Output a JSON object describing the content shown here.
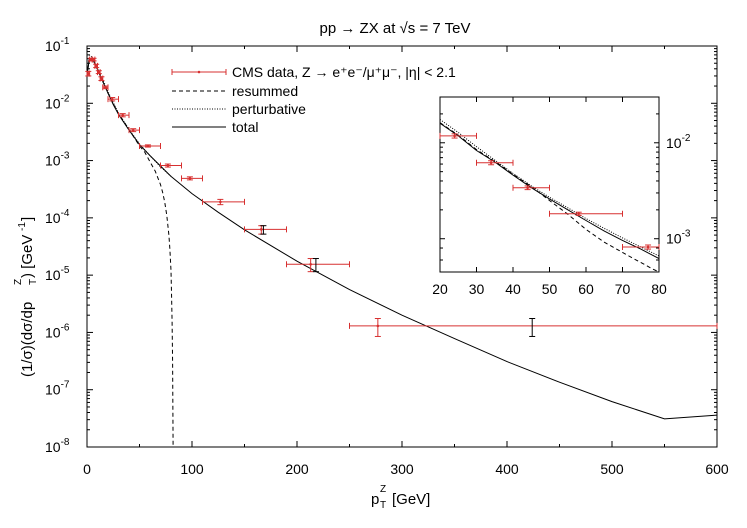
{
  "chart_data": [
    {
      "type": "scatter",
      "title": "pp → ZX at √s = 7 TeV",
      "xlabel": "p_T^Z [GeV]",
      "ylabel": "(1/σ)(dσ/dp_T^Z) [GeV^-1]",
      "xscale": "linear",
      "yscale": "log",
      "xlim": [
        0,
        600
      ],
      "ylim": [
        1e-08,
        0.1
      ],
      "xticks": [
        0,
        100,
        200,
        300,
        400,
        500,
        600
      ],
      "xtick_labels": [
        "0",
        "100",
        "200",
        "300",
        "400",
        "500",
        "600"
      ],
      "yticks": [
        1e-08,
        1e-07,
        1e-06,
        1e-05,
        0.0001,
        0.001,
        0.01,
        0.1
      ],
      "ytick_labels": [
        [
          "10",
          "-8"
        ],
        [
          "10",
          "-7"
        ],
        [
          "10",
          "-6"
        ],
        [
          "10",
          "-5"
        ],
        [
          "10",
          "-4"
        ],
        [
          "10",
          "-3"
        ],
        [
          "10",
          "-2"
        ],
        [
          "10",
          "-1"
        ]
      ],
      "legend_position": "top-center",
      "legend": [
        {
          "label": "CMS data, Z → e⁺e⁻/μ⁺μ⁻, |η| < 2.1",
          "style": "red points with error bars"
        },
        {
          "label": "resummed",
          "style": "dashed"
        },
        {
          "label": "perturbative",
          "style": "dotted"
        },
        {
          "label": "total",
          "style": "solid"
        }
      ],
      "data_points": [
        {
          "x": 1.25,
          "xlo": 0,
          "xhi": 2.5,
          "y": 0.033,
          "ylo": 0.03,
          "yhi": 0.036
        },
        {
          "x": 3.75,
          "xlo": 2.5,
          "xhi": 5,
          "y": 0.058,
          "ylo": 0.055,
          "yhi": 0.061
        },
        {
          "x": 6.25,
          "xlo": 5,
          "xhi": 7.5,
          "y": 0.058,
          "ylo": 0.055,
          "yhi": 0.061
        },
        {
          "x": 8.75,
          "xlo": 7.5,
          "xhi": 10,
          "y": 0.045,
          "ylo": 0.042,
          "yhi": 0.048
        },
        {
          "x": 11.25,
          "xlo": 10,
          "xhi": 12.5,
          "y": 0.035,
          "ylo": 0.033,
          "yhi": 0.037
        },
        {
          "x": 13.75,
          "xlo": 12.5,
          "xhi": 15,
          "y": 0.027,
          "ylo": 0.025,
          "yhi": 0.029
        },
        {
          "x": 17.5,
          "xlo": 15,
          "xhi": 20,
          "y": 0.019,
          "ylo": 0.018,
          "yhi": 0.02
        },
        {
          "x": 24,
          "xlo": 20,
          "xhi": 30,
          "y": 0.0118,
          "ylo": 0.011,
          "yhi": 0.0126
        },
        {
          "x": 34,
          "xlo": 30,
          "xhi": 40,
          "y": 0.0062,
          "ylo": 0.0058,
          "yhi": 0.0066
        },
        {
          "x": 44,
          "xlo": 40,
          "xhi": 50,
          "y": 0.0034,
          "ylo": 0.0032,
          "yhi": 0.0036
        },
        {
          "x": 58,
          "xlo": 50,
          "xhi": 70,
          "y": 0.0018,
          "ylo": 0.00172,
          "yhi": 0.00188
        },
        {
          "x": 77,
          "xlo": 70,
          "xhi": 90,
          "y": 0.00082,
          "ylo": 0.00077,
          "yhi": 0.00087
        },
        {
          "x": 98,
          "xlo": 90,
          "xhi": 110,
          "y": 0.00049,
          "ylo": 0.00046,
          "yhi": 0.00052
        },
        {
          "x": 127,
          "xlo": 110,
          "xhi": 150,
          "y": 0.00019,
          "ylo": 0.00017,
          "yhi": 0.00021
        },
        {
          "x": 166,
          "xlo": 150,
          "xhi": 190,
          "y": 6.3e-05,
          "ylo": 5.2e-05,
          "yhi": 7.3e-05
        },
        {
          "x": 213,
          "xlo": 190,
          "xhi": 250,
          "y": 1.55e-05,
          "ylo": 1.15e-05,
          "yhi": 1.95e-05
        },
        {
          "x": 277,
          "xlo": 250,
          "xhi": 600,
          "y": 1.3e-06,
          "ylo": 8.5e-07,
          "yhi": 1.75e-06
        }
      ],
      "systematic_caps": [
        {
          "x": 168,
          "ylo": 5.2e-05,
          "yhi": 7.3e-05
        },
        {
          "x": 218,
          "ylo": 1.15e-05,
          "yhi": 1.95e-05
        },
        {
          "x": 424,
          "ylo": 8.5e-07,
          "yhi": 1.75e-06
        }
      ],
      "series": [
        {
          "name": "total",
          "style": "solid",
          "x": [
            0,
            2,
            4,
            6,
            8,
            10,
            12,
            15,
            20,
            25,
            30,
            40,
            50,
            60,
            80,
            100,
            125,
            150,
            200,
            250,
            300,
            350,
            400,
            450,
            500,
            550,
            600
          ],
          "y": [
            0.03,
            0.057,
            0.06,
            0.056,
            0.047,
            0.039,
            0.032,
            0.024,
            0.015,
            0.0095,
            0.0064,
            0.0034,
            0.0019,
            0.00122,
            0.00053,
            0.000265,
            0.000125,
            6.2e-05,
            1.75e-05,
            5.6e-06,
            2e-06,
            7.8e-07,
            3.1e-07,
            1.35e-07,
            6.2e-08,
            3.1e-08,
            3.6e-08
          ]
        },
        {
          "name": "resummed",
          "style": "dashed",
          "x": [
            0,
            2,
            4,
            6,
            8,
            10,
            12,
            15,
            20,
            25,
            30,
            40,
            50,
            55,
            60,
            65,
            70,
            72,
            74,
            76,
            78,
            79,
            80,
            80.5,
            81,
            81.5,
            82
          ],
          "y": [
            0.03,
            0.057,
            0.06,
            0.056,
            0.047,
            0.039,
            0.032,
            0.024,
            0.015,
            0.0098,
            0.0066,
            0.0035,
            0.0018,
            0.0014,
            0.00095,
            0.00065,
            0.00038,
            0.00028,
            0.00019,
            0.00011,
            5e-05,
            2.8e-05,
            1.2e-05,
            5e-06,
            1.5e-06,
            3e-07,
            1e-08
          ]
        },
        {
          "name": "perturbative",
          "style": "dotted",
          "x": [
            2,
            4,
            6,
            8,
            10,
            12,
            15,
            20,
            25,
            30,
            40,
            50,
            60,
            70,
            80
          ],
          "y": [
            0.07,
            0.066,
            0.058,
            0.049,
            0.041,
            0.034,
            0.026,
            0.016,
            0.0102,
            0.0068,
            0.0035,
            0.00195,
            0.00122,
            0.00078,
            0.00053
          ]
        }
      ]
    },
    {
      "type": "scatter",
      "title": "",
      "xscale": "linear",
      "yscale": "log",
      "xlim": [
        20,
        80
      ],
      "ylim": [
        0.00045,
        0.03
      ],
      "xticks": [
        20,
        30,
        40,
        50,
        60,
        70,
        80
      ],
      "xtick_labels": [
        "20",
        "30",
        "40",
        "50",
        "60",
        "70",
        "80"
      ],
      "yticks": [
        0.01,
        0.001
      ],
      "ytick_labels": [
        [
          "10",
          "-2"
        ],
        [
          "10",
          "-3"
        ]
      ],
      "yaxis_side": "right",
      "data_points": [
        {
          "x": 24,
          "xlo": 20,
          "xhi": 30,
          "y": 0.0118,
          "ylo": 0.0112,
          "yhi": 0.0124
        },
        {
          "x": 34,
          "xlo": 30,
          "xhi": 40,
          "y": 0.0062,
          "ylo": 0.0059,
          "yhi": 0.0065
        },
        {
          "x": 44,
          "xlo": 40,
          "xhi": 50,
          "y": 0.0034,
          "ylo": 0.00325,
          "yhi": 0.00355
        },
        {
          "x": 58,
          "xlo": 50,
          "xhi": 70,
          "y": 0.00182,
          "ylo": 0.00175,
          "yhi": 0.00189
        },
        {
          "x": 77,
          "xlo": 70,
          "xhi": 80,
          "y": 0.00082,
          "ylo": 0.00078,
          "yhi": 0.00086
        }
      ],
      "series": [
        {
          "name": "total",
          "style": "solid",
          "x": [
            20,
            25,
            30,
            35,
            40,
            45,
            50,
            55,
            60,
            65,
            70,
            75,
            80
          ],
          "y": [
            0.016,
            0.0118,
            0.0083,
            0.0063,
            0.0046,
            0.0034,
            0.0026,
            0.002,
            0.00155,
            0.0012,
            0.00096,
            0.00078,
            0.00062
          ]
        },
        {
          "name": "resummed",
          "style": "dashed",
          "x": [
            20,
            25,
            30,
            35,
            40,
            45,
            50,
            55,
            60,
            65,
            70,
            73,
            76,
            78,
            80
          ],
          "y": [
            0.0162,
            0.012,
            0.0085,
            0.0064,
            0.0047,
            0.0035,
            0.0025,
            0.0018,
            0.00125,
            0.00092,
            0.00072,
            0.00062,
            0.00054,
            0.00049,
            0.00045
          ]
        },
        {
          "name": "perturbative",
          "style": "dotted",
          "x": [
            20,
            25,
            30,
            35,
            40,
            45,
            50,
            55,
            60,
            65,
            70,
            75,
            80
          ],
          "y": [
            0.0175,
            0.0128,
            0.0091,
            0.0066,
            0.0048,
            0.00355,
            0.0027,
            0.0021,
            0.00162,
            0.00128,
            0.00102,
            0.00082,
            0.00066
          ]
        }
      ]
    }
  ]
}
